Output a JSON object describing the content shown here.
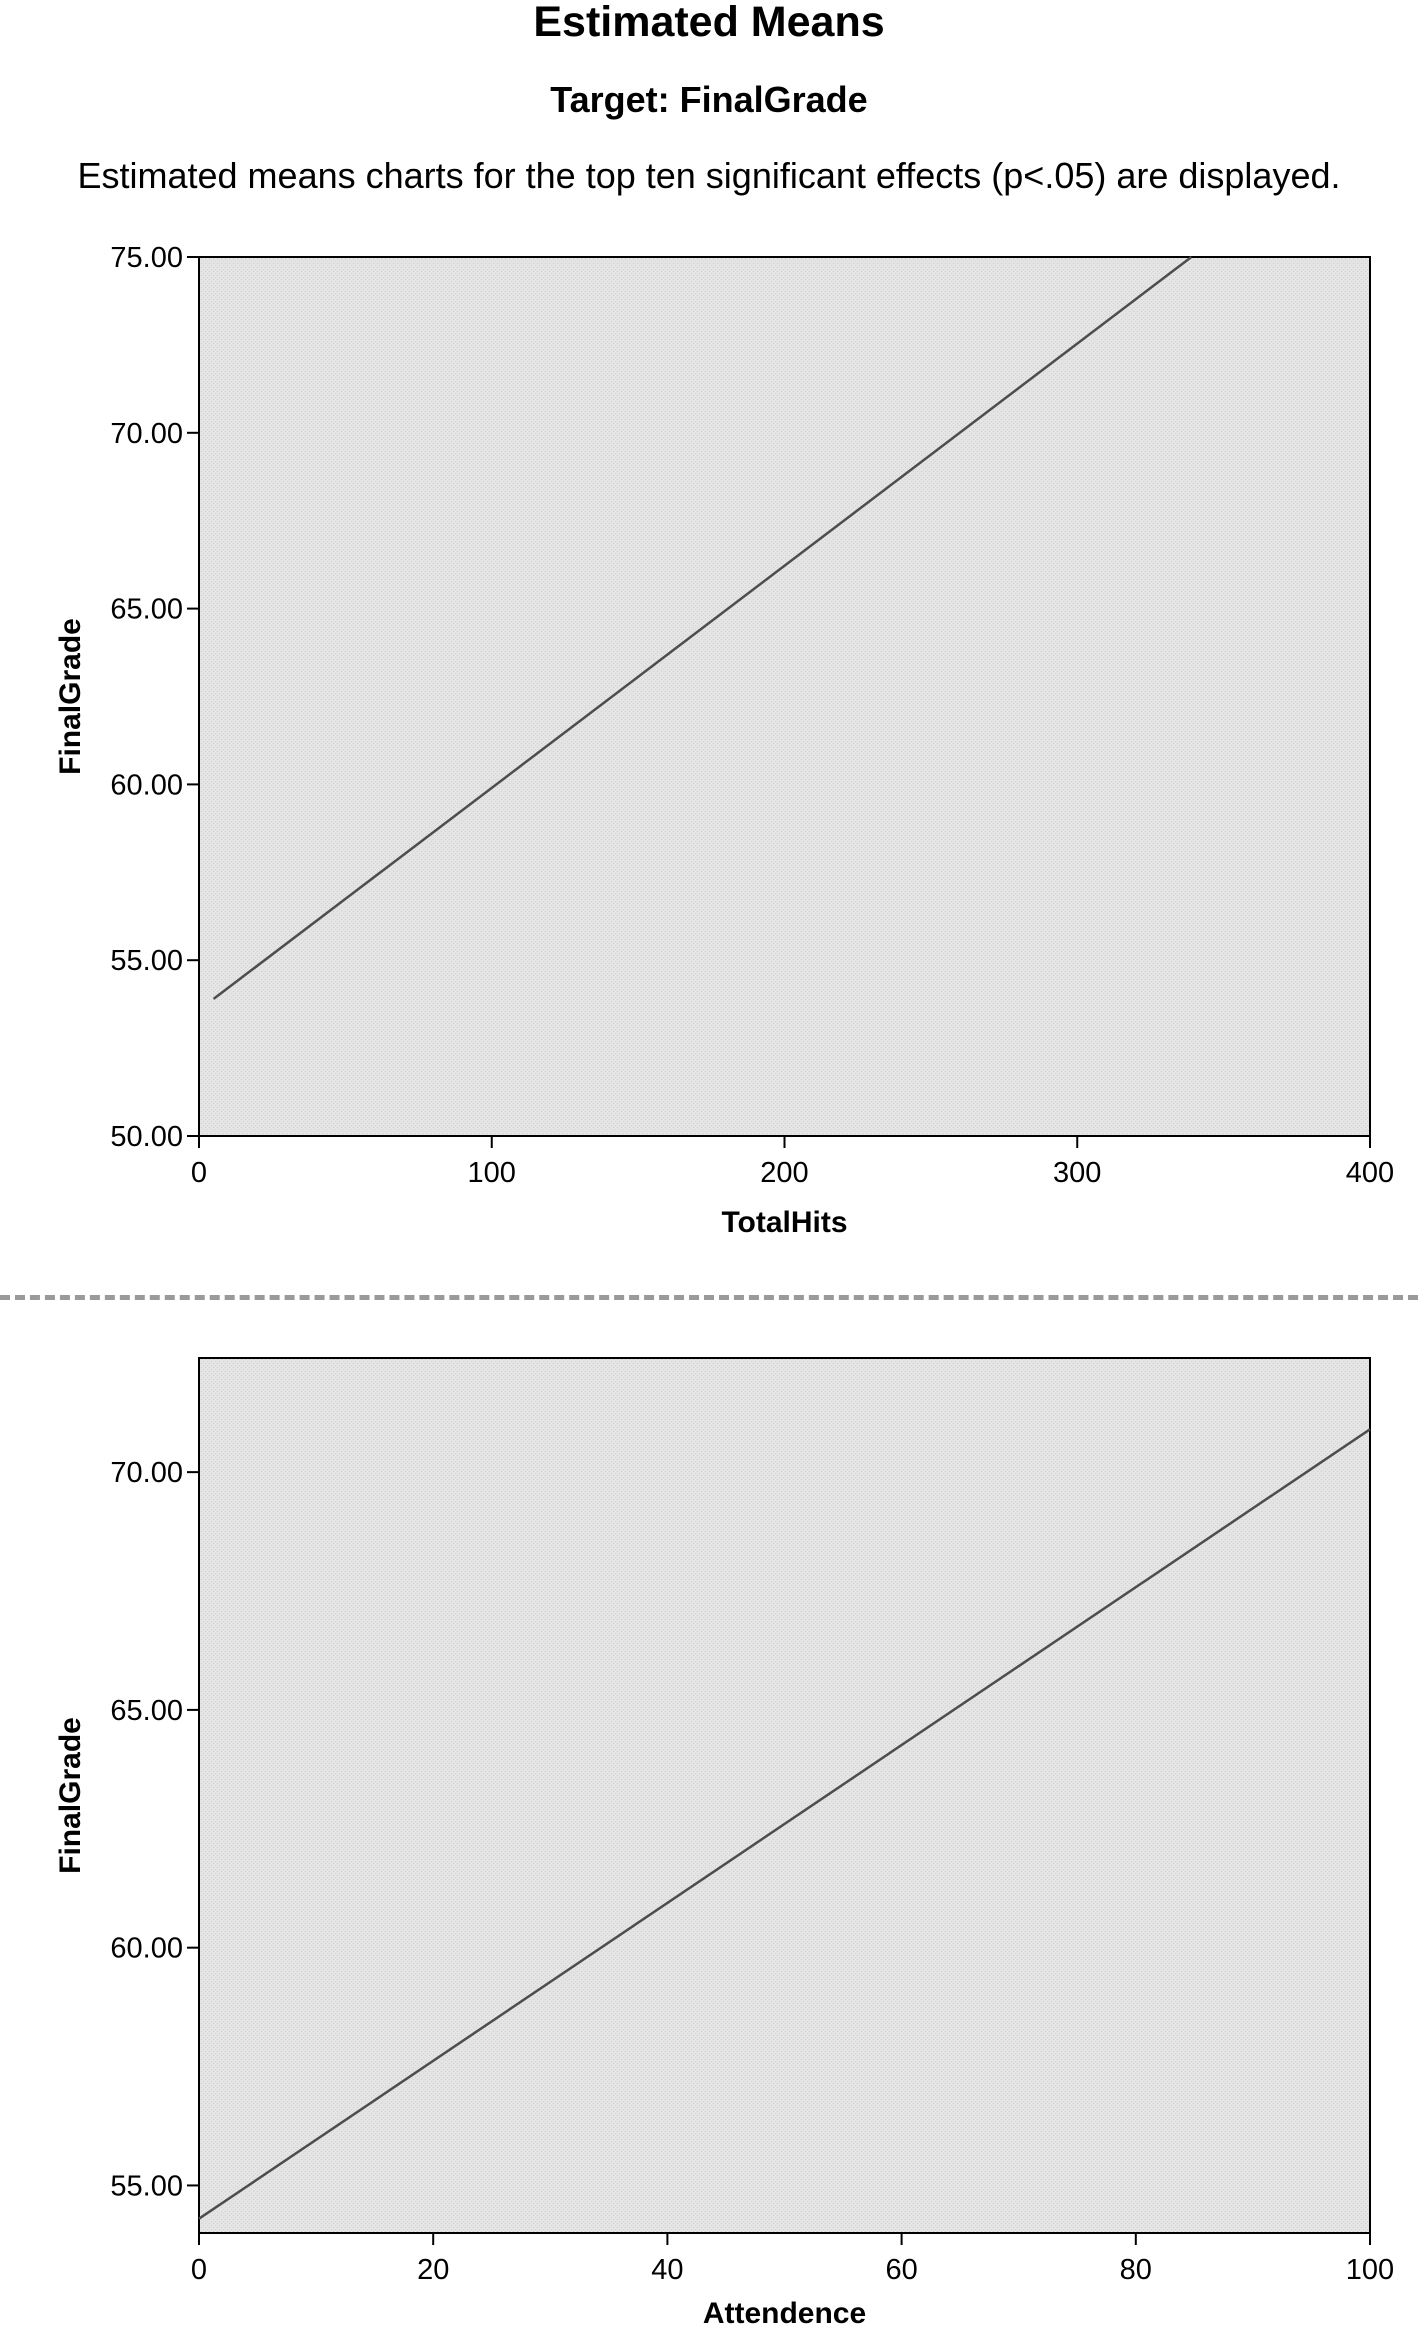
{
  "header": {
    "title": "Estimated Means",
    "subtitle": "Target: FinalGrade",
    "note": "Estimated means charts for the top ten significant effects (p<.05) are displayed."
  },
  "colors": {
    "plot_background": "#e4e4e4",
    "line": "#4d4d4d",
    "axis": "#000000",
    "separator": "#9a9a9a"
  },
  "chart_data": [
    {
      "type": "line",
      "title": "",
      "xlabel": "TotalHits",
      "ylabel": "FinalGrade",
      "xlim": [
        0,
        400
      ],
      "ylim": [
        50,
        75
      ],
      "x_ticks": [
        0,
        100,
        200,
        300,
        400
      ],
      "y_ticks": [
        50,
        55,
        60,
        65,
        70,
        75
      ],
      "y_tick_labels": [
        "50.00",
        "55.00",
        "60.00",
        "65.00",
        "70.00",
        "75.00"
      ],
      "grid": false,
      "series": [
        {
          "x": [
            5,
            339
          ],
          "y": [
            53.9,
            75.0
          ]
        }
      ]
    },
    {
      "type": "line",
      "title": "",
      "xlabel": "Attendence",
      "ylabel": "FinalGrade",
      "xlim": [
        0,
        100
      ],
      "ylim": [
        54,
        72.4
      ],
      "x_ticks": [
        0,
        20,
        40,
        60,
        80,
        100
      ],
      "y_ticks": [
        55,
        60,
        65,
        70
      ],
      "y_tick_labels": [
        "55.00",
        "60.00",
        "65.00",
        "70.00"
      ],
      "grid": false,
      "series": [
        {
          "x": [
            0,
            100
          ],
          "y": [
            54.3,
            70.9
          ]
        }
      ]
    }
  ]
}
